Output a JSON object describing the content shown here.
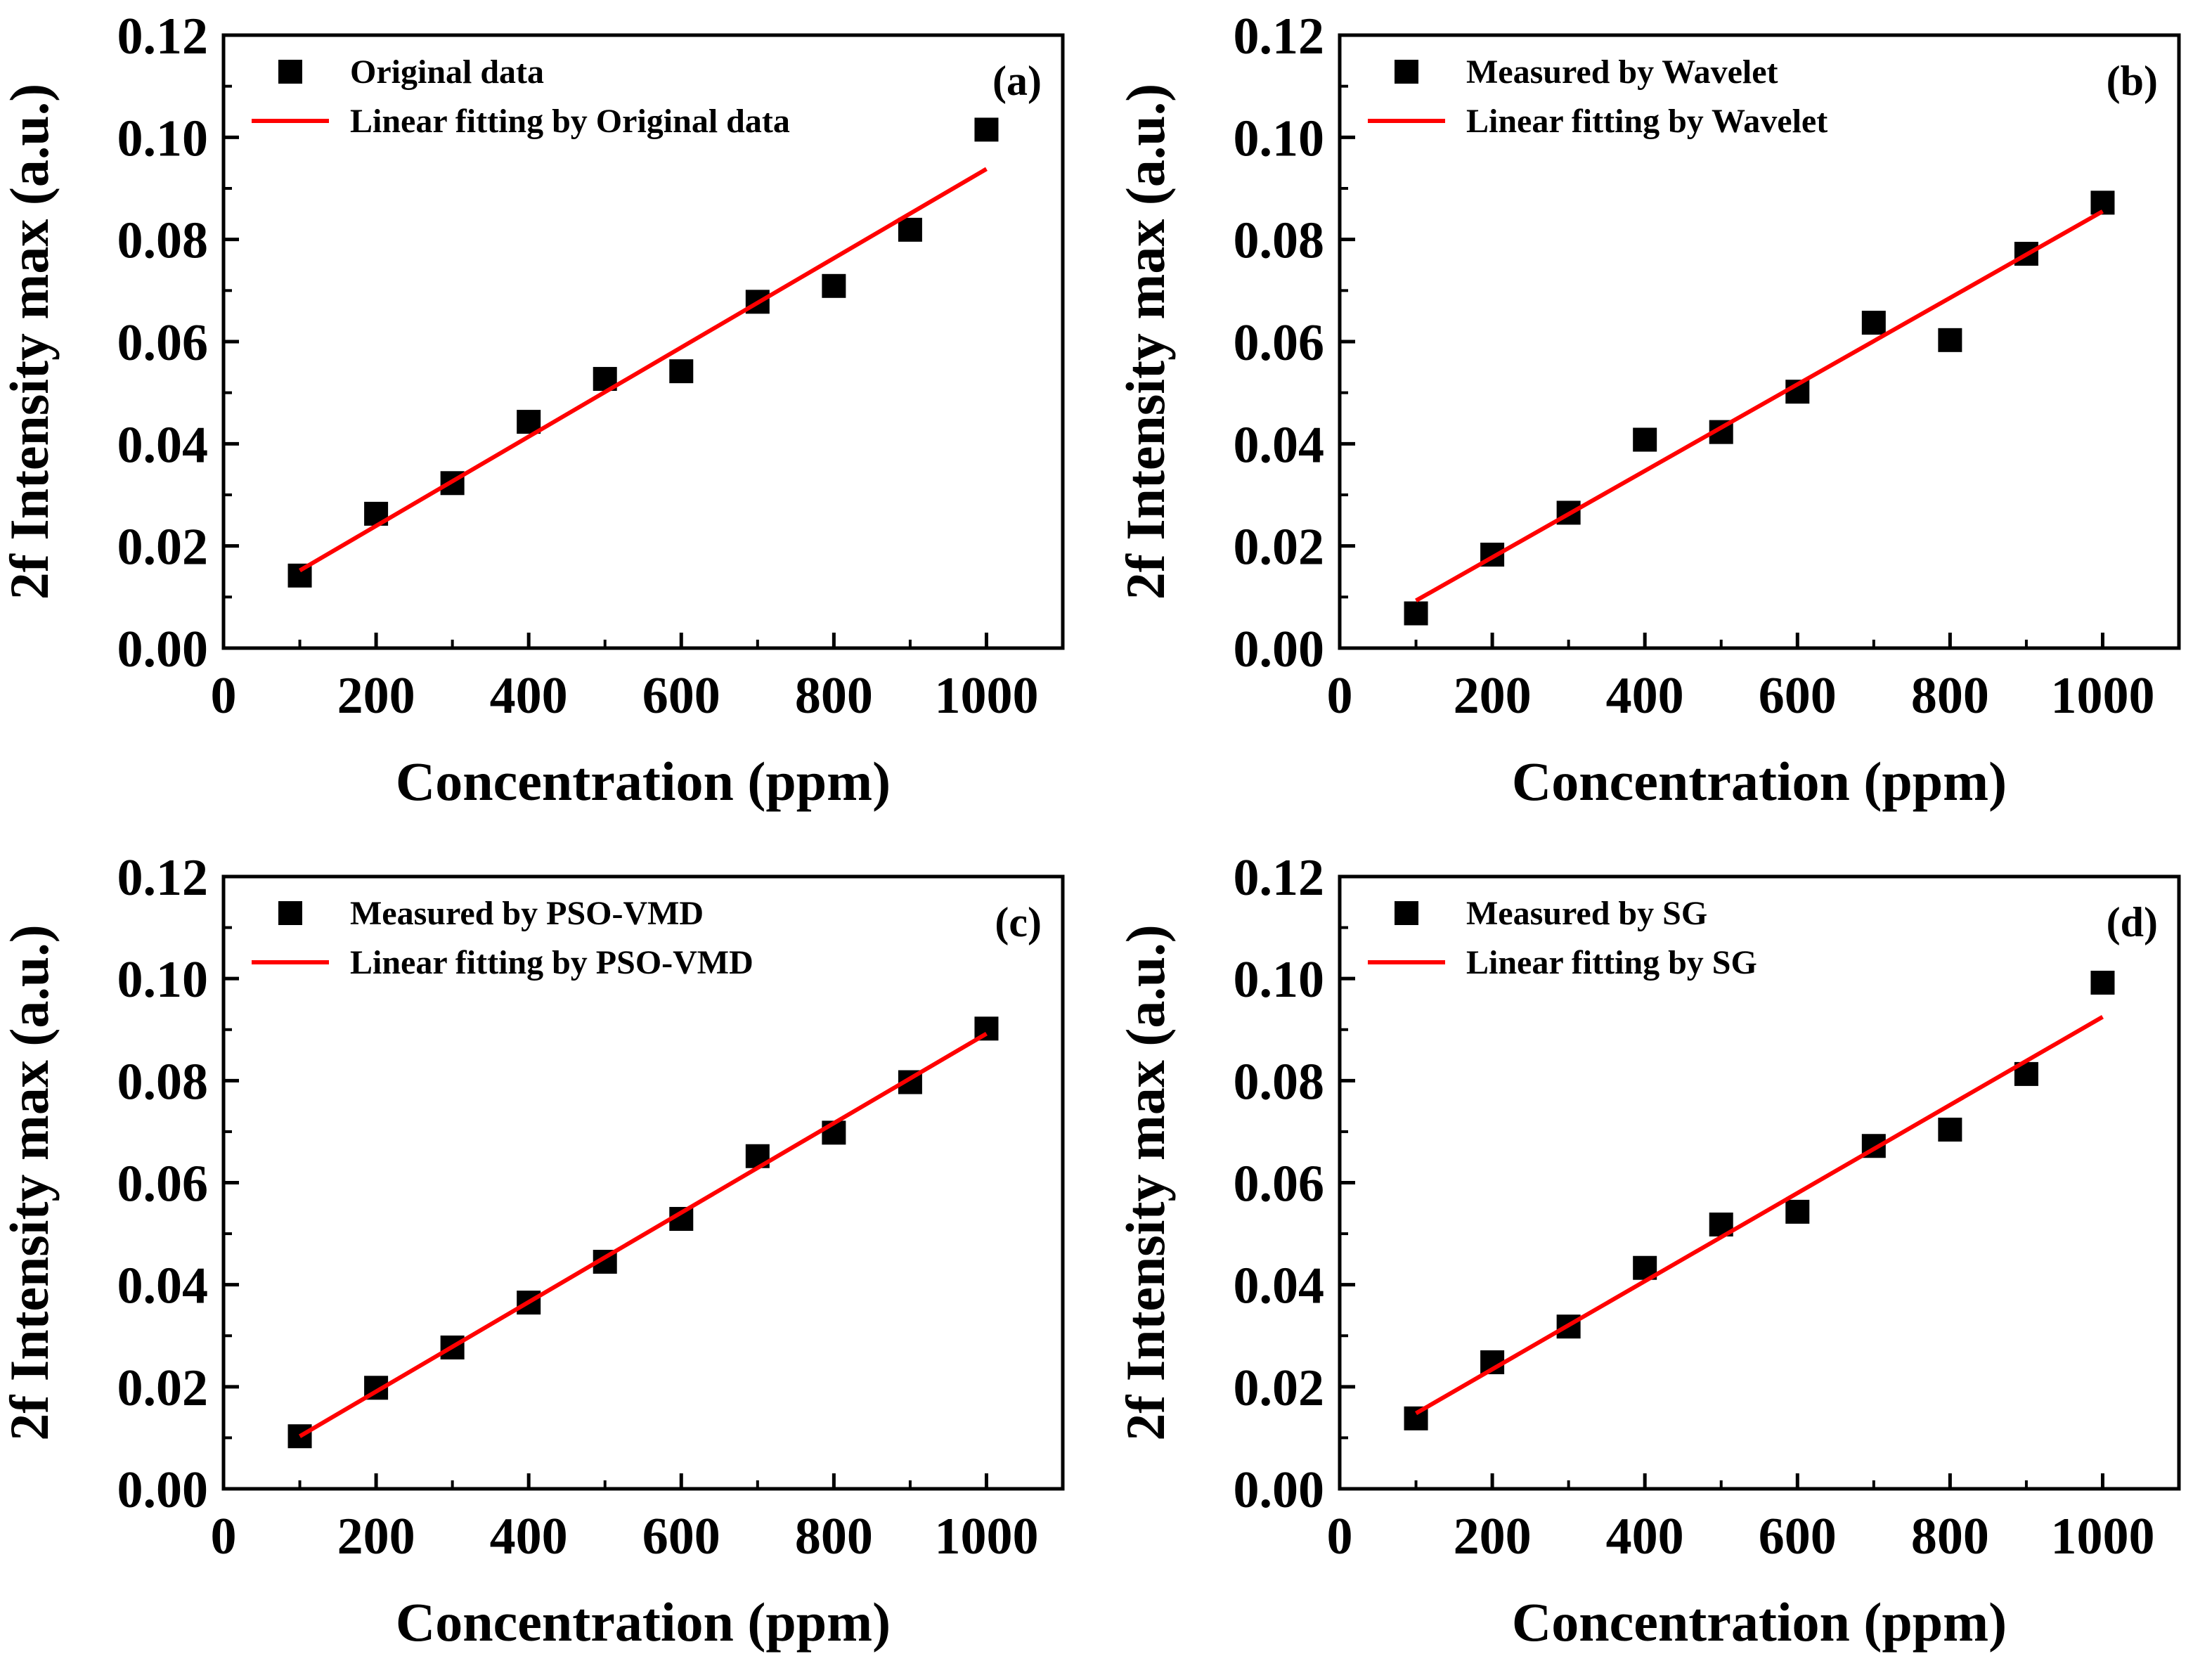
{
  "colors": {
    "marker": "#000000",
    "fit_line": "#ff0000",
    "axis": "#000000",
    "background": "#ffffff"
  },
  "chart_data": [
    {
      "type": "scatter",
      "panel_label": "(a)",
      "xlabel": "Concentration (ppm)",
      "ylabel": "2f Intensity max (a.u.)",
      "xlim": [
        0,
        1100
      ],
      "ylim": [
        0,
        0.12
      ],
      "xticks": [
        0,
        200,
        400,
        600,
        800,
        1000
      ],
      "xtick_labels": [
        "0",
        "200",
        "400",
        "600",
        "800",
        "1000"
      ],
      "yticks": [
        0,
        0.02,
        0.04,
        0.06,
        0.08,
        0.1,
        0.12
      ],
      "ytick_labels": [
        "0.00",
        "0.02",
        "0.04",
        "0.06",
        "0.08",
        "0.10",
        "0.12"
      ],
      "legend_position": "top-left",
      "grid": false,
      "series": [
        {
          "name": "Original data",
          "kind": "marker",
          "x": [
            100,
            200,
            300,
            400,
            500,
            600,
            700,
            800,
            900,
            1000
          ],
          "y": [
            0.0142,
            0.0263,
            0.0323,
            0.0443,
            0.0527,
            0.0542,
            0.0678,
            0.0709,
            0.0819,
            0.1015
          ]
        },
        {
          "name": "Linear fitting by Original data",
          "kind": "line",
          "x": [
            100,
            1000
          ],
          "y": [
            0.0152,
            0.0938
          ]
        }
      ]
    },
    {
      "type": "scatter",
      "panel_label": "(b)",
      "xlabel": "Concentration (ppm)",
      "ylabel": "2f Intensity max (a.u.)",
      "xlim": [
        0,
        1100
      ],
      "ylim": [
        0,
        0.12
      ],
      "xticks": [
        0,
        200,
        400,
        600,
        800,
        1000
      ],
      "xtick_labels": [
        "0",
        "200",
        "400",
        "600",
        "800",
        "1000"
      ],
      "yticks": [
        0,
        0.02,
        0.04,
        0.06,
        0.08,
        0.1,
        0.12
      ],
      "ytick_labels": [
        "0.00",
        "0.02",
        "0.04",
        "0.06",
        "0.08",
        "0.10",
        "0.12"
      ],
      "legend_position": "top-left",
      "grid": false,
      "series": [
        {
          "name": "Measured by Wavelet",
          "kind": "marker",
          "x": [
            100,
            200,
            300,
            400,
            500,
            600,
            700,
            800,
            900,
            1000
          ],
          "y": [
            0.0068,
            0.0183,
            0.0265,
            0.0408,
            0.0423,
            0.0502,
            0.0637,
            0.0603,
            0.0772,
            0.0872
          ]
        },
        {
          "name": "Linear fitting by Wavelet",
          "kind": "line",
          "x": [
            100,
            1000
          ],
          "y": [
            0.0093,
            0.0855
          ]
        }
      ]
    },
    {
      "type": "scatter",
      "panel_label": "(c)",
      "xlabel": "Concentration (ppm)",
      "ylabel": "2f Intensity max (a.u.)",
      "xlim": [
        0,
        1100
      ],
      "ylim": [
        0,
        0.12
      ],
      "xticks": [
        0,
        200,
        400,
        600,
        800,
        1000
      ],
      "xtick_labels": [
        "0",
        "200",
        "400",
        "600",
        "800",
        "1000"
      ],
      "yticks": [
        0,
        0.02,
        0.04,
        0.06,
        0.08,
        0.1,
        0.12
      ],
      "ytick_labels": [
        "0.00",
        "0.02",
        "0.04",
        "0.06",
        "0.08",
        "0.10",
        "0.12"
      ],
      "legend_position": "top-left",
      "grid": false,
      "series": [
        {
          "name": "Measured by PSO-VMD",
          "kind": "marker",
          "x": [
            100,
            200,
            300,
            400,
            500,
            600,
            700,
            800,
            900,
            1000
          ],
          "y": [
            0.0103,
            0.0198,
            0.0277,
            0.0365,
            0.0445,
            0.0529,
            0.0652,
            0.0698,
            0.0797,
            0.0902
          ]
        },
        {
          "name": "Linear fitting by PSO-VMD",
          "kind": "line",
          "x": [
            100,
            1000
          ],
          "y": [
            0.0103,
            0.0892
          ]
        }
      ]
    },
    {
      "type": "scatter",
      "panel_label": "(d)",
      "xlabel": "Concentration (ppm)",
      "ylabel": "2f Intensity max (a.u.)",
      "xlim": [
        0,
        1100
      ],
      "ylim": [
        0,
        0.12
      ],
      "xticks": [
        0,
        200,
        400,
        600,
        800,
        1000
      ],
      "xtick_labels": [
        "0",
        "200",
        "400",
        "600",
        "800",
        "1000"
      ],
      "yticks": [
        0,
        0.02,
        0.04,
        0.06,
        0.08,
        0.1,
        0.12
      ],
      "ytick_labels": [
        "0.00",
        "0.02",
        "0.04",
        "0.06",
        "0.08",
        "0.10",
        "0.12"
      ],
      "legend_position": "top-left",
      "grid": false,
      "series": [
        {
          "name": "Measured by SG",
          "kind": "marker",
          "x": [
            100,
            200,
            300,
            400,
            500,
            600,
            700,
            800,
            900,
            1000
          ],
          "y": [
            0.0138,
            0.0248,
            0.0318,
            0.0433,
            0.0518,
            0.0543,
            0.0672,
            0.0704,
            0.0813,
            0.0992
          ]
        },
        {
          "name": "Linear fitting by SG",
          "kind": "line",
          "x": [
            100,
            1000
          ],
          "y": [
            0.0148,
            0.0925
          ]
        }
      ]
    }
  ]
}
